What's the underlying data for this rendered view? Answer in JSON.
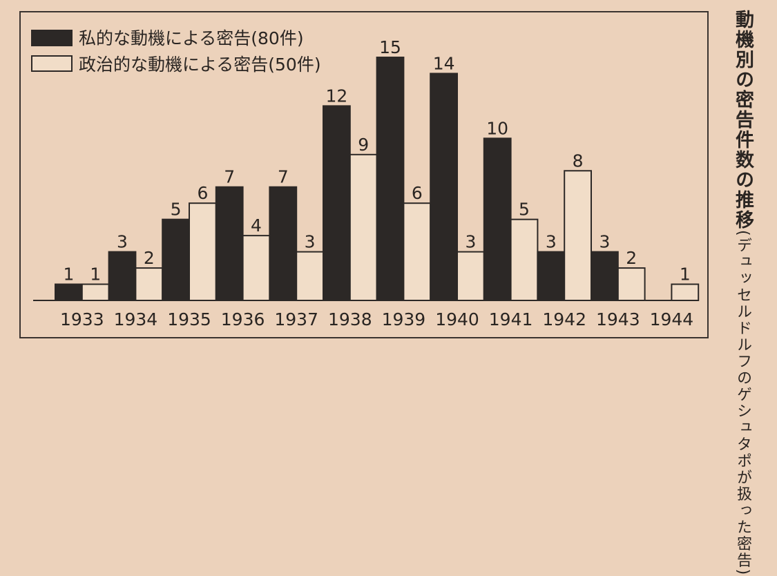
{
  "chart_data": {
    "type": "bar",
    "title": "動機別の密告件数の推移",
    "subtitle": "(デュッセルドルフのゲシュタポが扱った密告)",
    "categories": [
      "1933",
      "1934",
      "1935",
      "1936",
      "1937",
      "1938",
      "1939",
      "1940",
      "1941",
      "1942",
      "1943",
      "1944"
    ],
    "series": [
      {
        "name": "私的な動機による密告(80件)",
        "values": [
          1,
          3,
          5,
          7,
          7,
          12,
          15,
          14,
          10,
          3,
          3,
          0
        ],
        "color": "#2c2826"
      },
      {
        "name": "政治的な動機による密告(50件)",
        "values": [
          1,
          2,
          6,
          4,
          3,
          9,
          6,
          3,
          5,
          8,
          2,
          1
        ],
        "color": "#f1ddc8"
      }
    ],
    "ylim": [
      0,
      15
    ],
    "grid": false,
    "legend": "top-left"
  }
}
